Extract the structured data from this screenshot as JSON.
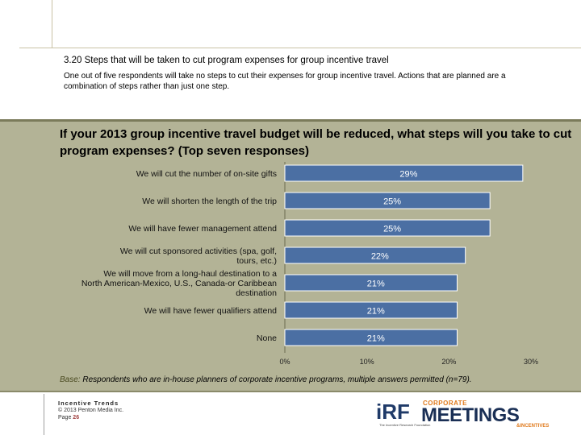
{
  "section": {
    "title": "3.20 Steps that will be taken to cut program expenses for group incentive travel",
    "intro": "One out of five respondents will take no steps to cut their expenses for group incentive travel. Actions that are planned are a combination of steps rather than just one step."
  },
  "chart_data": {
    "type": "bar",
    "orientation": "horizontal",
    "title": "If your 2013 group incentive travel budget will be reduced, what steps will you take to cut program expenses? (Top seven responses)",
    "categories": [
      "We will cut the number of on-site gifts",
      "We will shorten the length of the trip",
      "We will have fewer management attend",
      "We will cut sponsored activities (spa, golf, tours, etc.)",
      "We will move from a long-haul destination to a North American-Mexico, U.S., Canada-or Caribbean destination",
      "We will have fewer qualifiers attend",
      "None"
    ],
    "values": [
      29,
      25,
      25,
      22,
      21,
      21,
      21
    ],
    "data_labels": [
      "29%",
      "25%",
      "25%",
      "22%",
      "21%",
      "21%",
      "21%"
    ],
    "xlim": [
      0,
      30
    ],
    "xticks": [
      "0%",
      "10%",
      "20%",
      "30%"
    ],
    "bar_color": "#4b6fa3",
    "bar_edge_color": "#ffffff"
  },
  "base_note": {
    "label": "Base:",
    "text": " Respondents who are in-house planners of corporate incentive programs, multiple answers permitted ",
    "n": "(n=79)."
  },
  "footer": {
    "brand": "Incentive Trends",
    "copyright": "© 2013 Penton Media Inc.",
    "page_label": "Page ",
    "page_number": "26"
  },
  "logos": {
    "irf": "iRF",
    "irf_sub": "The Incentive Research Foundation",
    "cm_top": "CORPORATE",
    "cm_main": "MEETINGS",
    "cm_bottom": "&INCENTIVES"
  }
}
